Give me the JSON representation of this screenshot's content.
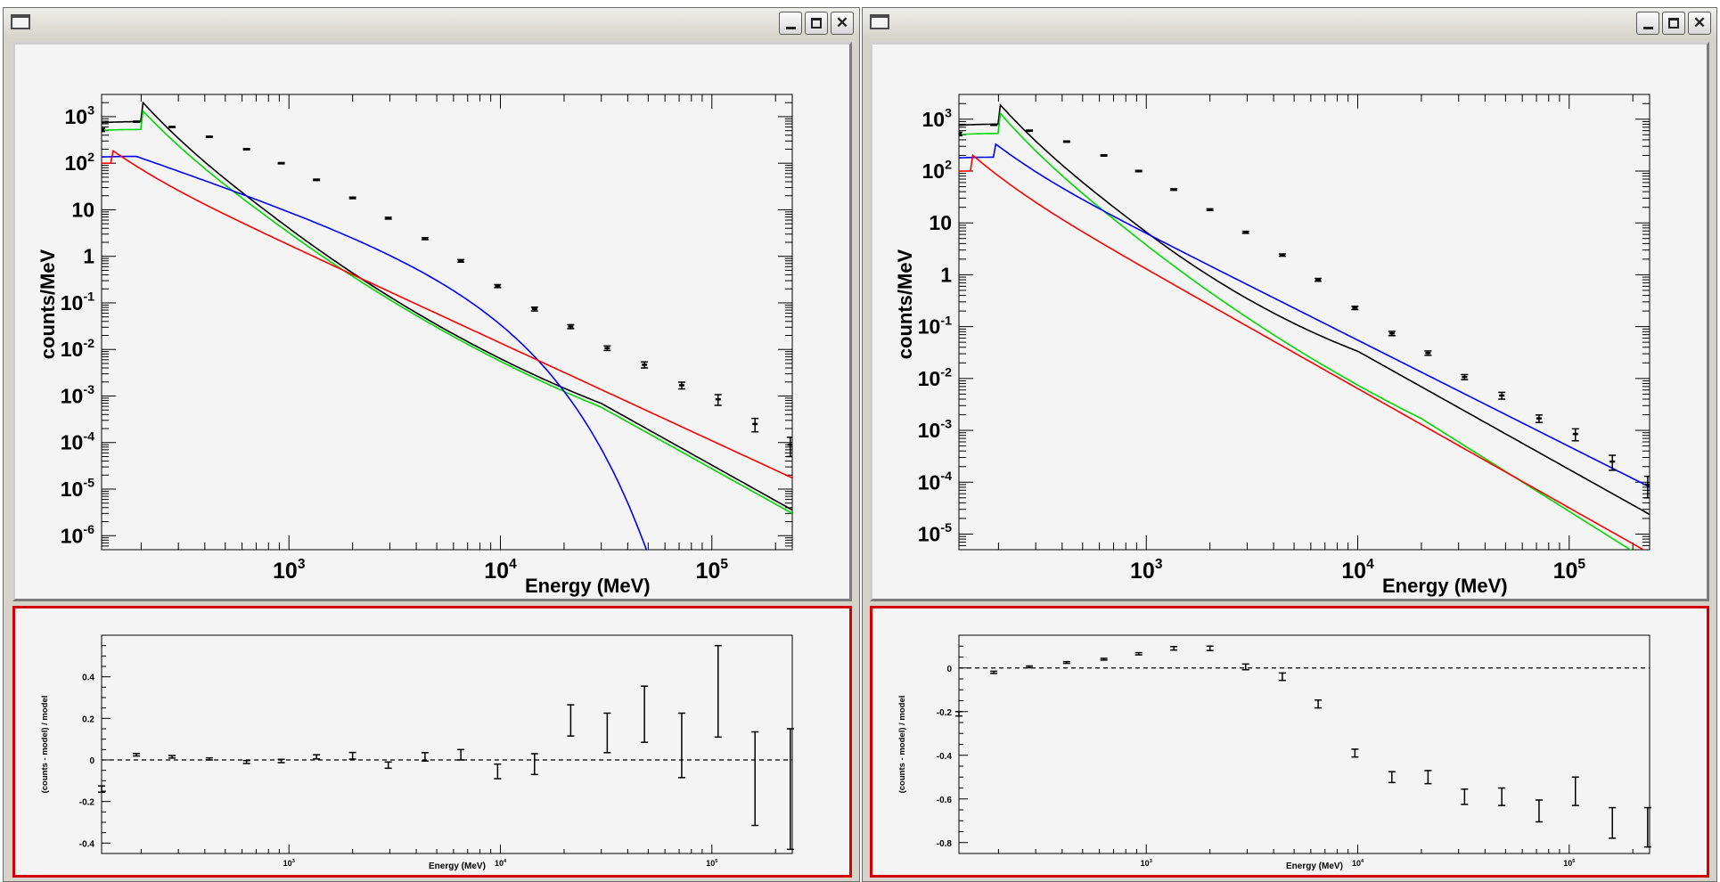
{
  "windows": [
    {
      "id": "left"
    },
    {
      "id": "right"
    }
  ],
  "colors": {
    "data": "#000000",
    "total_model": "#000000",
    "green_model": "#00d800",
    "blue_model": "#0000ff",
    "red_model": "#ff0000",
    "residual_pad_border": "#d40000"
  },
  "icons": [
    "window-menu-icon",
    "minimize-icon",
    "maximize-icon",
    "close-icon"
  ],
  "chart_data": [
    {
      "type": "line",
      "panel": "left-spectrum",
      "xlabel": "Energy (MeV)",
      "ylabel": "counts/MeV",
      "xscale": "log",
      "yscale": "log",
      "xlim": [
        130,
        240000
      ],
      "ylim": [
        5e-07,
        3000
      ],
      "x_ticks": [
        "10^3",
        "10^4",
        "10^5"
      ],
      "y_ticks": [
        "10^3",
        "10^2",
        "10",
        "1",
        "10^-1",
        "10^-2",
        "10^-3",
        "10^-4",
        "10^-5",
        "10^-6"
      ],
      "data_points": [
        {
          "x": 130,
          "y": 520,
          "err": 40
        },
        {
          "x": 190,
          "y": 780,
          "err": 20
        },
        {
          "x": 280,
          "y": 600,
          "err": 15
        },
        {
          "x": 420,
          "y": 370,
          "err": 10
        },
        {
          "x": 630,
          "y": 200,
          "err": 6
        },
        {
          "x": 920,
          "y": 100,
          "err": 3
        },
        {
          "x": 1350,
          "y": 44,
          "err": 1.5
        },
        {
          "x": 2000,
          "y": 18,
          "err": 0.7
        },
        {
          "x": 2950,
          "y": 6.6,
          "err": 0.3
        },
        {
          "x": 4400,
          "y": 2.4,
          "err": 0.12
        },
        {
          "x": 6500,
          "y": 0.8,
          "err": 0.05
        },
        {
          "x": 9700,
          "y": 0.23,
          "err": 0.017
        },
        {
          "x": 14500,
          "y": 0.074,
          "err": 0.007
        },
        {
          "x": 21500,
          "y": 0.031,
          "err": 0.003
        },
        {
          "x": 32000,
          "y": 0.0107,
          "err": 0.0012
        },
        {
          "x": 48000,
          "y": 0.0047,
          "err": 0.0007
        },
        {
          "x": 72000,
          "y": 0.0017,
          "err": 0.00028
        },
        {
          "x": 107000,
          "y": 0.00085,
          "err": 0.00022
        },
        {
          "x": 160000,
          "y": 0.00025,
          "err": 8e-05
        },
        {
          "x": 235000,
          "y": 9e-05,
          "err": 4e-05
        }
      ],
      "series": [
        {
          "color": "#000000",
          "curve": {
            "kind": "logpar",
            "A": 780,
            "peak": 200,
            "lo": 0.55,
            "hi": 3.3,
            "hi2": 2.45,
            "bk1": 1000,
            "bk2": 30000
          }
        },
        {
          "color": "#00d800",
          "curve": {
            "kind": "logpar",
            "A": 530,
            "peak": 200,
            "lo": 0.55,
            "hi": 3.2,
            "hi2": 2.45,
            "bk1": 1000,
            "bk2": 30000
          }
        },
        {
          "color": "#0000ff",
          "curve": {
            "kind": "cutoff",
            "A": 140,
            "peak": 190,
            "lo": 0.45,
            "index": 1.55,
            "Ec": 4500,
            "beta": 1.0
          }
        },
        {
          "color": "#ff0000",
          "curve": {
            "kind": "logpar",
            "A": 100,
            "peak": 145,
            "lo": 0.45,
            "hi": 2.1,
            "hi2": 2.1,
            "bk1": 1000,
            "bk2": 30000
          }
        }
      ]
    },
    {
      "type": "line",
      "panel": "right-spectrum",
      "xlabel": "Energy (MeV)",
      "ylabel": "counts/MeV",
      "xscale": "log",
      "yscale": "log",
      "xlim": [
        130,
        240000
      ],
      "ylim": [
        5e-06,
        3000
      ],
      "x_ticks": [
        "10^3",
        "10^4",
        "10^5"
      ],
      "y_ticks": [
        "10^3",
        "10^2",
        "10",
        "1",
        "10^-1",
        "10^-2",
        "10^-3",
        "10^-4",
        "10^-5"
      ],
      "data_points": [
        {
          "x": 130,
          "y": 520,
          "err": 40
        },
        {
          "x": 190,
          "y": 780,
          "err": 20
        },
        {
          "x": 280,
          "y": 600,
          "err": 15
        },
        {
          "x": 420,
          "y": 370,
          "err": 10
        },
        {
          "x": 630,
          "y": 200,
          "err": 6
        },
        {
          "x": 920,
          "y": 100,
          "err": 3
        },
        {
          "x": 1350,
          "y": 44,
          "err": 1.5
        },
        {
          "x": 2000,
          "y": 18,
          "err": 0.7
        },
        {
          "x": 2950,
          "y": 6.6,
          "err": 0.3
        },
        {
          "x": 4400,
          "y": 2.4,
          "err": 0.12
        },
        {
          "x": 6500,
          "y": 0.8,
          "err": 0.05
        },
        {
          "x": 9700,
          "y": 0.23,
          "err": 0.017
        },
        {
          "x": 14500,
          "y": 0.074,
          "err": 0.007
        },
        {
          "x": 21500,
          "y": 0.031,
          "err": 0.003
        },
        {
          "x": 32000,
          "y": 0.0107,
          "err": 0.0012
        },
        {
          "x": 48000,
          "y": 0.0047,
          "err": 0.0007
        },
        {
          "x": 72000,
          "y": 0.0017,
          "err": 0.00028
        },
        {
          "x": 107000,
          "y": 0.00085,
          "err": 0.00022
        },
        {
          "x": 160000,
          "y": 0.00025,
          "err": 8e-05
        },
        {
          "x": 235000,
          "y": 9e-05,
          "err": 4e-05
        }
      ],
      "series": [
        {
          "color": "#000000",
          "curve": {
            "kind": "logpar",
            "A": 800,
            "peak": 200,
            "lo": 0.55,
            "hi": 3.0,
            "hi2": 2.2,
            "bk1": 1000,
            "bk2": 10000
          }
        },
        {
          "color": "#00d800",
          "curve": {
            "kind": "logpar",
            "A": 530,
            "peak": 200,
            "lo": 0.55,
            "hi": 3.1,
            "hi2": 2.5,
            "bk1": 1000,
            "bk2": 20000
          }
        },
        {
          "color": "#0000ff",
          "curve": {
            "kind": "logpar",
            "A": 185,
            "peak": 190,
            "lo": 0.45,
            "hi": 2.05,
            "hi2": 2.05,
            "bk1": 1000,
            "bk2": 30000
          }
        },
        {
          "color": "#ff0000",
          "curve": {
            "kind": "logpar",
            "A": 100,
            "peak": 150,
            "lo": 0.45,
            "hi": 2.3,
            "hi2": 2.3,
            "bk1": 1000,
            "bk2": 30000
          }
        }
      ]
    },
    {
      "type": "scatter",
      "panel": "left-residuals",
      "xlabel": "Energy (MeV)",
      "ylabel": "(counts - model) / model",
      "xscale": "log",
      "xlim": [
        130,
        240000
      ],
      "ylim": [
        -0.45,
        0.6
      ],
      "x_ticks": [
        "10^3",
        "10^4",
        "10^5"
      ],
      "y_ticks": [
        "0.4",
        "0.2",
        "0",
        "-0.2",
        "-0.4"
      ],
      "baseline": 0,
      "points": [
        {
          "x": 130,
          "y": -0.14,
          "err": 0.015
        },
        {
          "x": 190,
          "y": 0.025,
          "err": 0.006
        },
        {
          "x": 280,
          "y": 0.015,
          "err": 0.006
        },
        {
          "x": 420,
          "y": 0.005,
          "err": 0.005
        },
        {
          "x": 630,
          "y": -0.01,
          "err": 0.007
        },
        {
          "x": 920,
          "y": -0.005,
          "err": 0.008
        },
        {
          "x": 1350,
          "y": 0.015,
          "err": 0.01
        },
        {
          "x": 2000,
          "y": 0.02,
          "err": 0.016
        },
        {
          "x": 2950,
          "y": -0.025,
          "err": 0.015
        },
        {
          "x": 4400,
          "y": 0.015,
          "err": 0.02
        },
        {
          "x": 6500,
          "y": 0.025,
          "err": 0.025
        },
        {
          "x": 9700,
          "y": -0.055,
          "err": 0.035
        },
        {
          "x": 14500,
          "y": -0.02,
          "err": 0.05
        },
        {
          "x": 21500,
          "y": 0.19,
          "err": 0.075
        },
        {
          "x": 32000,
          "y": 0.13,
          "err": 0.095
        },
        {
          "x": 48000,
          "y": 0.22,
          "err": 0.135
        },
        {
          "x": 72000,
          "y": 0.07,
          "err": 0.155
        },
        {
          "x": 107000,
          "y": 0.33,
          "err": 0.22
        },
        {
          "x": 160000,
          "y": -0.09,
          "err": 0.225
        },
        {
          "x": 235000,
          "y": -0.14,
          "err": 0.29
        }
      ]
    },
    {
      "type": "scatter",
      "panel": "right-residuals",
      "xlabel": "Energy (MeV)",
      "ylabel": "(counts - model) / model",
      "xscale": "log",
      "xlim": [
        130,
        240000
      ],
      "ylim": [
        -0.85,
        0.15
      ],
      "x_ticks": [
        "10^3",
        "10^4",
        "10^5"
      ],
      "y_ticks": [
        "0",
        "-0.2",
        "-0.4",
        "-0.6",
        "-0.8"
      ],
      "baseline": 0,
      "points": [
        {
          "x": 130,
          "y": -0.21,
          "err": 0.01
        },
        {
          "x": 190,
          "y": -0.02,
          "err": 0.005
        },
        {
          "x": 280,
          "y": 0.005,
          "err": 0.004
        },
        {
          "x": 420,
          "y": 0.025,
          "err": 0.004
        },
        {
          "x": 630,
          "y": 0.04,
          "err": 0.004
        },
        {
          "x": 920,
          "y": 0.065,
          "err": 0.005
        },
        {
          "x": 1350,
          "y": 0.09,
          "err": 0.008
        },
        {
          "x": 2000,
          "y": 0.09,
          "err": 0.01
        },
        {
          "x": 2950,
          "y": 0.005,
          "err": 0.013
        },
        {
          "x": 4400,
          "y": -0.04,
          "err": 0.017
        },
        {
          "x": 6500,
          "y": -0.165,
          "err": 0.018
        },
        {
          "x": 9700,
          "y": -0.39,
          "err": 0.018
        },
        {
          "x": 14500,
          "y": -0.5,
          "err": 0.025
        },
        {
          "x": 21500,
          "y": -0.5,
          "err": 0.03
        },
        {
          "x": 32000,
          "y": -0.59,
          "err": 0.035
        },
        {
          "x": 48000,
          "y": -0.59,
          "err": 0.04
        },
        {
          "x": 72000,
          "y": -0.655,
          "err": 0.05
        },
        {
          "x": 107000,
          "y": -0.565,
          "err": 0.065
        },
        {
          "x": 160000,
          "y": -0.71,
          "err": 0.07
        },
        {
          "x": 235000,
          "y": -0.73,
          "err": 0.09
        }
      ]
    }
  ]
}
